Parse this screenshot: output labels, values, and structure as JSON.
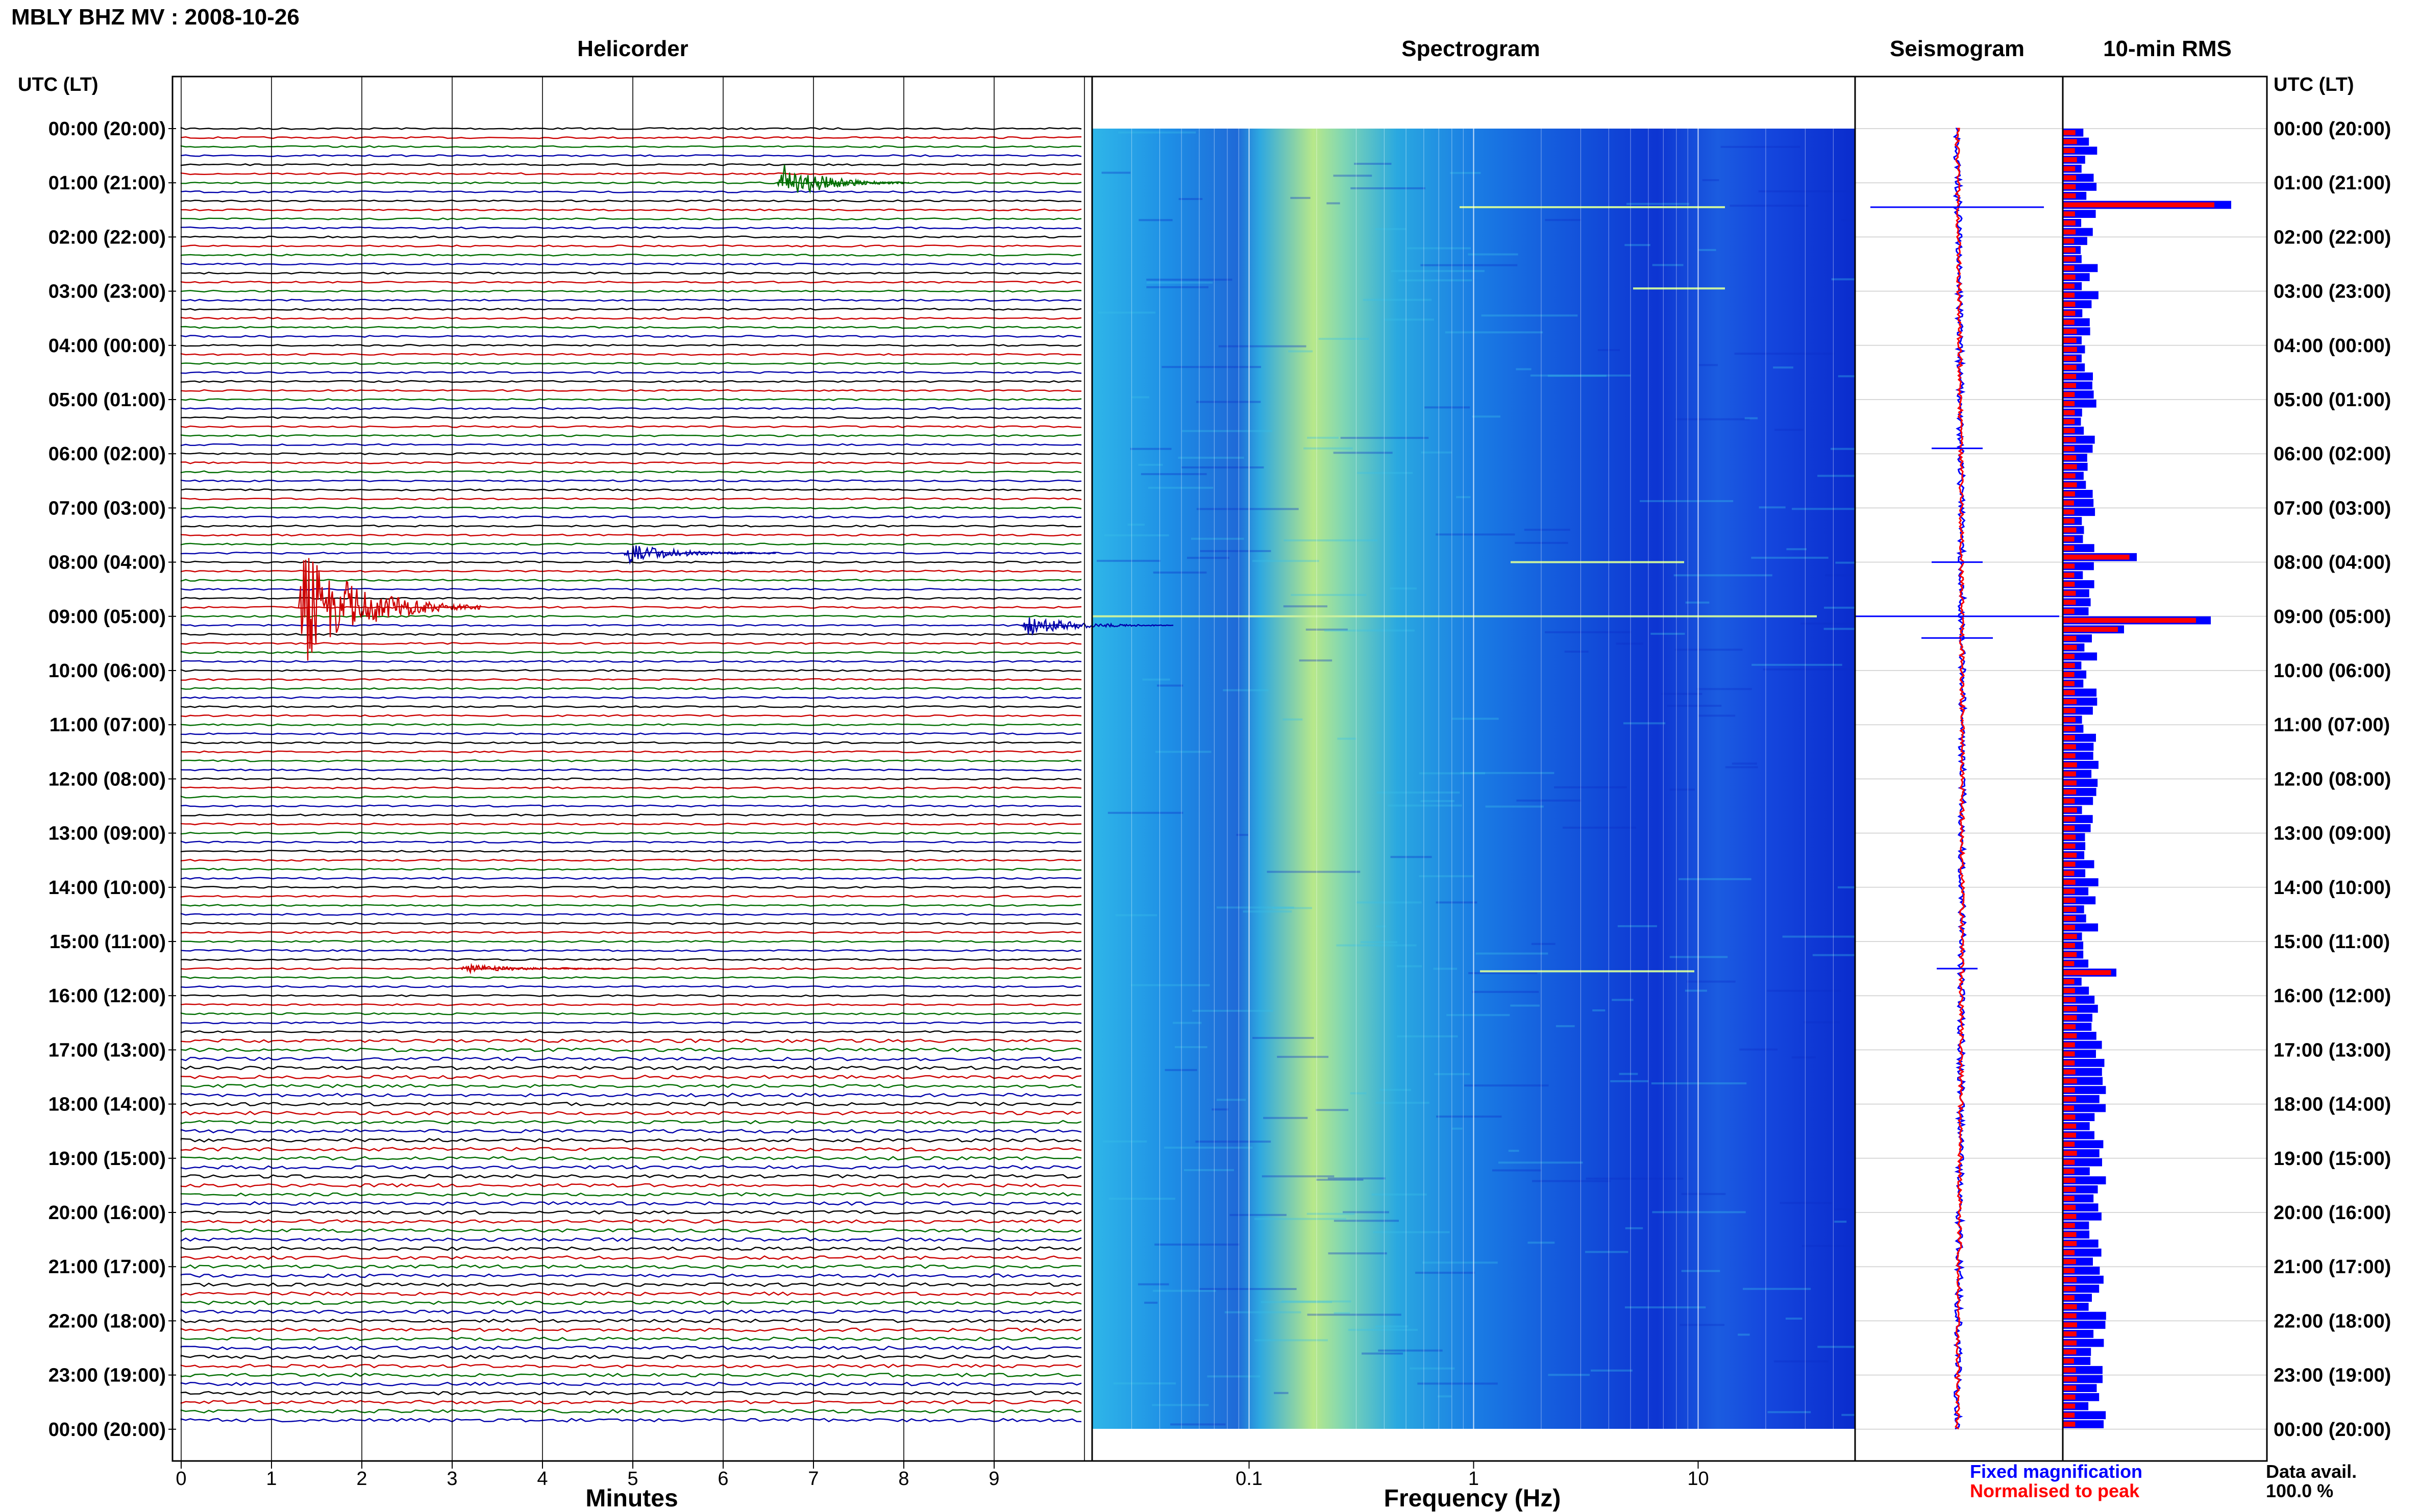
{
  "header": {
    "title": "MBLY BHZ MV : 2008-10-26"
  },
  "colors": {
    "trace_cycle": [
      "#000000",
      "#cc0000",
      "#006d00",
      "#0000aa"
    ],
    "fixed": "#0000ff",
    "normalised": "#ff0000",
    "grid": "#000000"
  },
  "panels": {
    "helicorder": {
      "title": "Helicorder",
      "xlabel": "Minutes",
      "ticks": [
        "0",
        "1",
        "2",
        "3",
        "4",
        "5",
        "6",
        "7",
        "8",
        "9"
      ]
    },
    "spectrogram": {
      "title": "Spectrogram",
      "xlabel": "Frequency (Hz)",
      "ticks": [
        "0.1",
        "1",
        "10"
      ]
    },
    "seismogram": {
      "title": "Seismogram"
    },
    "rms": {
      "title": "10-min RMS"
    }
  },
  "axis": {
    "left_header": "UTC (LT)",
    "right_header": "UTC (LT)",
    "hour_labels": [
      "00:00 (20:00)",
      "01:00 (21:00)",
      "02:00 (22:00)",
      "03:00 (23:00)",
      "04:00 (00:00)",
      "05:00 (01:00)",
      "06:00 (02:00)",
      "07:00 (03:00)",
      "08:00 (04:00)",
      "09:00 (05:00)",
      "10:00 (06:00)",
      "11:00 (07:00)",
      "12:00 (08:00)",
      "13:00 (09:00)",
      "14:00 (10:00)",
      "15:00 (11:00)",
      "16:00 (12:00)",
      "17:00 (13:00)",
      "18:00 (14:00)",
      "19:00 (15:00)",
      "20:00 (16:00)",
      "21:00 (17:00)",
      "22:00 (18:00)",
      "23:00 (19:00)",
      "00:00 (20:00)"
    ]
  },
  "legend": {
    "fixed": "Fixed magnification",
    "normalised": "Normalised to peak",
    "avail_label": "Data avail.",
    "avail_value": "100.0 %"
  },
  "chart_data": [
    {
      "type": "line",
      "title": "Helicorder",
      "xlabel": "Minutes",
      "xlim": [
        0,
        10
      ],
      "rows": 144,
      "row_minutes": 10,
      "events": [
        {
          "utc": "01:00",
          "minute": 6.6,
          "amplitude": "large"
        },
        {
          "utc": "08:50",
          "minute": 1.3,
          "amplitude": "very large"
        },
        {
          "utc": "09:10",
          "minute": 9.3,
          "amplitude": "medium"
        },
        {
          "utc": "07:50",
          "minute": 4.9,
          "amplitude": "medium"
        },
        {
          "utc": "15:30",
          "minute": 3.1,
          "amplitude": "small"
        }
      ]
    },
    {
      "type": "heatmap",
      "title": "Spectrogram",
      "xlabel": "Frequency (Hz)",
      "xscale": "log",
      "xlim": [
        0.02,
        50
      ],
      "peak_band_hz": [
        0.15,
        0.35
      ]
    },
    {
      "type": "line",
      "title": "Seismogram",
      "series": [
        {
          "name": "Fixed magnification"
        },
        {
          "name": "Normalised to peak"
        }
      ]
    },
    {
      "type": "bar",
      "title": "10-min RMS",
      "bins": 144,
      "peak_bins_utc": [
        "01:10",
        "07:50",
        "09:00",
        "09:10",
        "15:30"
      ]
    }
  ]
}
